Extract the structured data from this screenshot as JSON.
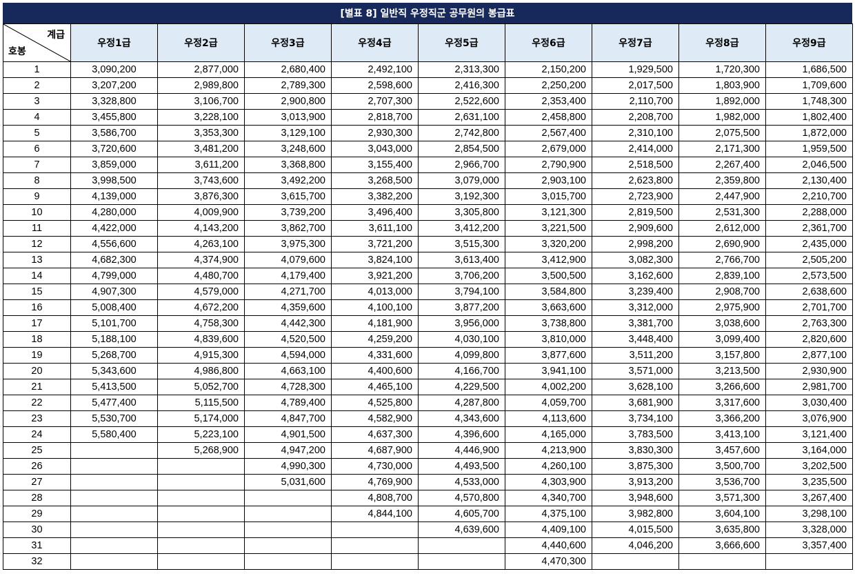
{
  "title": "[별표 8] 일반직 우정직군 공무원의 봉급표",
  "corner": {
    "top_label": "계급",
    "bottom_label": "호봉"
  },
  "grades": [
    "우정1급",
    "우정2급",
    "우정3급",
    "우정4급",
    "우정5급",
    "우정6급",
    "우정7급",
    "우정8급",
    "우정9급"
  ],
  "rows": [
    {
      "step": "1",
      "values": [
        "3,090,200",
        "2,877,000",
        "2,680,400",
        "2,492,100",
        "2,313,300",
        "2,150,200",
        "1,929,500",
        "1,720,300",
        "1,686,500"
      ]
    },
    {
      "step": "2",
      "values": [
        "3,207,200",
        "2,989,800",
        "2,789,300",
        "2,598,600",
        "2,416,300",
        "2,250,200",
        "2,017,500",
        "1,803,900",
        "1,709,600"
      ]
    },
    {
      "step": "3",
      "values": [
        "3,328,800",
        "3,106,700",
        "2,900,800",
        "2,707,300",
        "2,522,600",
        "2,353,400",
        "2,110,700",
        "1,892,000",
        "1,748,300"
      ]
    },
    {
      "step": "4",
      "values": [
        "3,455,800",
        "3,228,100",
        "3,013,900",
        "2,818,700",
        "2,631,100",
        "2,458,800",
        "2,208,700",
        "1,982,000",
        "1,802,400"
      ]
    },
    {
      "step": "5",
      "values": [
        "3,586,700",
        "3,353,300",
        "3,129,100",
        "2,930,300",
        "2,742,800",
        "2,567,400",
        "2,310,100",
        "2,075,500",
        "1,872,000"
      ]
    },
    {
      "step": "6",
      "values": [
        "3,720,600",
        "3,481,200",
        "3,248,600",
        "3,043,000",
        "2,854,500",
        "2,679,000",
        "2,414,000",
        "2,171,300",
        "1,959,500"
      ]
    },
    {
      "step": "7",
      "values": [
        "3,859,000",
        "3,611,200",
        "3,368,800",
        "3,155,400",
        "2,966,700",
        "2,790,900",
        "2,518,500",
        "2,267,400",
        "2,046,500"
      ]
    },
    {
      "step": "8",
      "values": [
        "3,998,500",
        "3,743,600",
        "3,492,200",
        "3,268,500",
        "3,079,000",
        "2,903,100",
        "2,623,800",
        "2,359,800",
        "2,130,400"
      ]
    },
    {
      "step": "9",
      "values": [
        "4,139,000",
        "3,876,300",
        "3,615,700",
        "3,382,200",
        "3,192,300",
        "3,015,700",
        "2,723,900",
        "2,447,900",
        "2,210,700"
      ]
    },
    {
      "step": "10",
      "values": [
        "4,280,000",
        "4,009,900",
        "3,739,200",
        "3,496,400",
        "3,305,800",
        "3,121,300",
        "2,819,500",
        "2,531,300",
        "2,288,000"
      ]
    },
    {
      "step": "11",
      "values": [
        "4,422,000",
        "4,143,200",
        "3,862,700",
        "3,611,100",
        "3,412,200",
        "3,221,500",
        "2,909,600",
        "2,612,000",
        "2,361,700"
      ]
    },
    {
      "step": "12",
      "values": [
        "4,556,600",
        "4,263,100",
        "3,975,300",
        "3,721,200",
        "3,515,300",
        "3,320,200",
        "2,998,200",
        "2,690,900",
        "2,435,000"
      ]
    },
    {
      "step": "13",
      "values": [
        "4,682,300",
        "4,374,900",
        "4,079,600",
        "3,824,100",
        "3,613,400",
        "3,412,900",
        "3,082,300",
        "2,766,700",
        "2,505,200"
      ]
    },
    {
      "step": "14",
      "values": [
        "4,799,000",
        "4,480,700",
        "4,179,400",
        "3,921,200",
        "3,706,200",
        "3,500,500",
        "3,162,600",
        "2,839,100",
        "2,573,500"
      ]
    },
    {
      "step": "15",
      "values": [
        "4,907,300",
        "4,579,000",
        "4,271,700",
        "4,013,000",
        "3,794,100",
        "3,584,800",
        "3,239,400",
        "2,908,700",
        "2,638,600"
      ]
    },
    {
      "step": "16",
      "values": [
        "5,008,400",
        "4,672,200",
        "4,359,600",
        "4,100,100",
        "3,877,200",
        "3,663,600",
        "3,312,000",
        "2,975,900",
        "2,701,700"
      ]
    },
    {
      "step": "17",
      "values": [
        "5,101,700",
        "4,758,300",
        "4,442,300",
        "4,181,900",
        "3,956,000",
        "3,738,800",
        "3,381,700",
        "3,038,600",
        "2,763,300"
      ]
    },
    {
      "step": "18",
      "values": [
        "5,188,100",
        "4,839,600",
        "4,520,500",
        "4,259,200",
        "4,030,100",
        "3,810,000",
        "3,448,400",
        "3,099,400",
        "2,820,600"
      ]
    },
    {
      "step": "19",
      "values": [
        "5,268,700",
        "4,915,300",
        "4,594,000",
        "4,331,600",
        "4,099,800",
        "3,877,600",
        "3,511,200",
        "3,157,800",
        "2,877,100"
      ]
    },
    {
      "step": "20",
      "values": [
        "5,343,600",
        "4,986,800",
        "4,663,100",
        "4,400,600",
        "4,166,700",
        "3,941,100",
        "3,571,000",
        "3,213,500",
        "2,930,900"
      ]
    },
    {
      "step": "21",
      "values": [
        "5,413,500",
        "5,052,700",
        "4,728,300",
        "4,465,100",
        "4,229,500",
        "4,002,200",
        "3,628,100",
        "3,266,600",
        "2,981,700"
      ]
    },
    {
      "step": "22",
      "values": [
        "5,477,400",
        "5,115,500",
        "4,789,400",
        "4,525,800",
        "4,287,800",
        "4,059,700",
        "3,681,900",
        "3,317,600",
        "3,030,400"
      ]
    },
    {
      "step": "23",
      "values": [
        "5,530,700",
        "5,174,000",
        "4,847,700",
        "4,582,900",
        "4,343,600",
        "4,113,600",
        "3,734,100",
        "3,366,200",
        "3,076,900"
      ]
    },
    {
      "step": "24",
      "values": [
        "5,580,400",
        "5,223,100",
        "4,901,500",
        "4,637,300",
        "4,396,600",
        "4,165,000",
        "3,783,500",
        "3,413,100",
        "3,121,400"
      ]
    },
    {
      "step": "25",
      "values": [
        "",
        "5,268,900",
        "4,947,200",
        "4,687,900",
        "4,446,900",
        "4,213,900",
        "3,830,300",
        "3,457,600",
        "3,164,000"
      ]
    },
    {
      "step": "26",
      "values": [
        "",
        "",
        "4,990,300",
        "4,730,000",
        "4,493,500",
        "4,260,100",
        "3,875,300",
        "3,500,700",
        "3,202,500"
      ]
    },
    {
      "step": "27",
      "values": [
        "",
        "",
        "5,031,600",
        "4,769,900",
        "4,533,000",
        "4,303,900",
        "3,913,200",
        "3,536,700",
        "3,235,500"
      ]
    },
    {
      "step": "28",
      "values": [
        "",
        "",
        "",
        "4,808,700",
        "4,570,800",
        "4,340,700",
        "3,948,600",
        "3,571,300",
        "3,267,400"
      ]
    },
    {
      "step": "29",
      "values": [
        "",
        "",
        "",
        "4,844,100",
        "4,605,700",
        "4,375,100",
        "3,982,800",
        "3,604,100",
        "3,298,100"
      ]
    },
    {
      "step": "30",
      "values": [
        "",
        "",
        "",
        "",
        "4,639,600",
        "4,409,100",
        "4,015,500",
        "3,635,800",
        "3,328,000"
      ]
    },
    {
      "step": "31",
      "values": [
        "",
        "",
        "",
        "",
        "",
        "4,440,600",
        "4,046,200",
        "3,666,600",
        "3,357,400"
      ]
    },
    {
      "step": "32",
      "values": [
        "",
        "",
        "",
        "",
        "",
        "4,470,300",
        "",
        "",
        ""
      ]
    }
  ]
}
